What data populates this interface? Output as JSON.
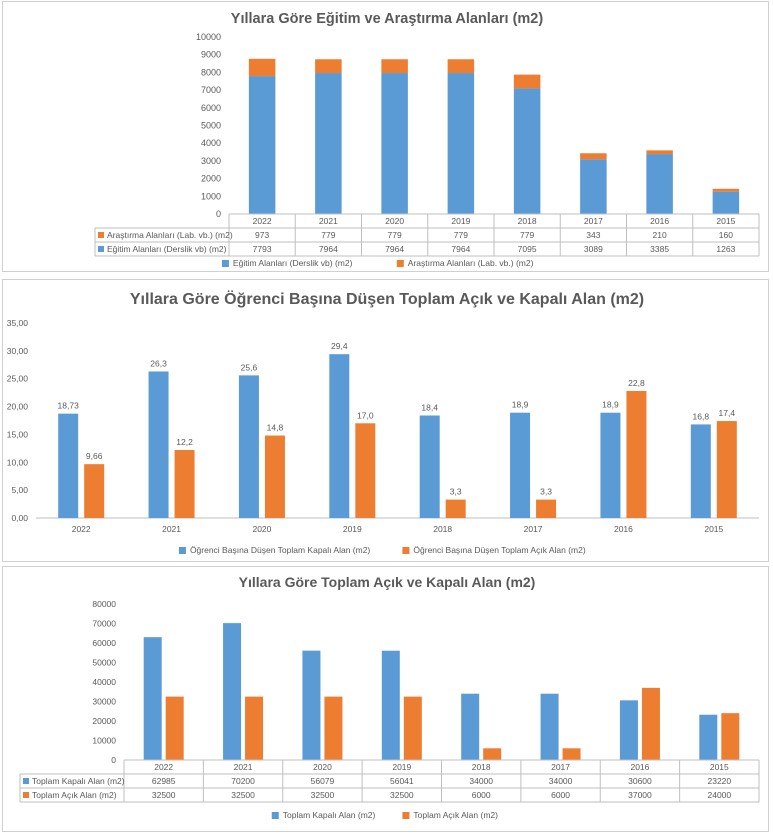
{
  "colors": {
    "blue": "#5b9bd5",
    "orange": "#ed7d31",
    "grid": "#d9d9d9",
    "axis": "#bfbfbf",
    "text": "#595959"
  },
  "chart_data": [
    {
      "type": "bar",
      "stacked": true,
      "title": "Yıllara Göre Eğitim ve Araştırma Alanları (m2)",
      "categories": [
        "2022",
        "2021",
        "2020",
        "2019",
        "2018",
        "2017",
        "2016",
        "2015"
      ],
      "ylim": [
        0,
        10000
      ],
      "yticks": [
        "0",
        "1000",
        "2000",
        "3000",
        "4000",
        "5000",
        "6000",
        "7000",
        "8000",
        "9000",
        "10000"
      ],
      "series": [
        {
          "name": "Eğitim Alanları (Derslik vb) (m2)",
          "color": "#5b9bd5",
          "values": [
            7793,
            7964,
            7964,
            7964,
            7095,
            3089,
            3385,
            1263
          ]
        },
        {
          "name": "Araştırma Alanları (Lab. vb.) (m2)",
          "color": "#ed7d31",
          "values": [
            973,
            779,
            779,
            779,
            779,
            343,
            210,
            160
          ]
        }
      ],
      "data_table": {
        "rows": [
          {
            "label": "Araştırma Alanları (Lab. vb.) (m2)",
            "color": "#ed7d31",
            "cells": [
              "973",
              "779",
              "779",
              "779",
              "779",
              "343",
              "210",
              "160"
            ]
          },
          {
            "label": "Eğitim Alanları (Derslik vb) (m2)",
            "color": "#5b9bd5",
            "cells": [
              "7793",
              "7964",
              "7964",
              "7964",
              "7095",
              "3089",
              "3385",
              "1263"
            ]
          }
        ]
      },
      "legend": [
        "Eğitim Alanları (Derslik vb) (m2)",
        "Araştırma Alanları (Lab. vb.) (m2)"
      ],
      "grid": false,
      "legend_position": "bottom"
    },
    {
      "type": "bar",
      "title": "Yıllara Göre Öğrenci Başına Düşen Toplam Açık ve Kapalı Alan (m2)",
      "categories": [
        "2022",
        "2021",
        "2020",
        "2019",
        "2018",
        "2017",
        "2016",
        "2015"
      ],
      "ylim": [
        0,
        35
      ],
      "yticks": [
        "0,00",
        "5,00",
        "10,00",
        "15,00",
        "20,00",
        "25,00",
        "30,00",
        "35,00"
      ],
      "series": [
        {
          "name": "Öğrenci Başına Düşen Toplam Kapalı Alan (m2)",
          "color": "#5b9bd5",
          "values": [
            18.73,
            26.3,
            25.6,
            29.4,
            18.4,
            18.9,
            18.9,
            16.8
          ],
          "labels": [
            "18,73",
            "26,3",
            "25,6",
            "29,4",
            "18,4",
            "18,9",
            "18,9",
            "16,8"
          ]
        },
        {
          "name": "Öğrenci Başına Düşen Toplam Açık Alan (m2)",
          "color": "#ed7d31",
          "values": [
            9.66,
            12.2,
            14.8,
            17.0,
            3.3,
            3.3,
            22.8,
            17.4
          ],
          "labels": [
            "9,66",
            "12,2",
            "14,8",
            "17,0",
            "3,3",
            "3,3",
            "22,8",
            "17,4"
          ]
        }
      ],
      "legend": [
        "Öğrenci Başına Düşen Toplam Kapalı Alan (m2)",
        "Öğrenci Başına Düşen Toplam Açık Alan (m2)"
      ],
      "grid": false,
      "legend_position": "bottom"
    },
    {
      "type": "bar",
      "title": "Yıllara Göre Toplam Açık ve Kapalı Alan (m2)",
      "categories": [
        "2022",
        "2021",
        "2020",
        "2019",
        "2018",
        "2017",
        "2016",
        "2015"
      ],
      "ylim": [
        0,
        80000
      ],
      "yticks": [
        "0",
        "10000",
        "20000",
        "30000",
        "40000",
        "50000",
        "60000",
        "70000",
        "80000"
      ],
      "series": [
        {
          "name": "Toplam Kapalı Alan (m2)",
          "color": "#5b9bd5",
          "values": [
            62985,
            70200,
            56079,
            56041,
            34000,
            34000,
            30600,
            23220
          ]
        },
        {
          "name": "Toplam Açık Alan (m2)",
          "color": "#ed7d31",
          "values": [
            32500,
            32500,
            32500,
            32500,
            6000,
            6000,
            37000,
            24000
          ]
        }
      ],
      "data_table": {
        "rows": [
          {
            "label": "Toplam Kapalı Alan (m2)",
            "color": "#5b9bd5",
            "cells": [
              "62985",
              "70200",
              "56079",
              "56041",
              "34000",
              "34000",
              "30600",
              "23220"
            ]
          },
          {
            "label": "Toplam Açık Alan (m2)",
            "color": "#ed7d31",
            "cells": [
              "32500",
              "32500",
              "32500",
              "32500",
              "6000",
              "6000",
              "37000",
              "24000"
            ]
          }
        ]
      },
      "legend": [
        "Toplam Kapalı Alan (m2)",
        "Toplam Açık Alan (m2)"
      ],
      "grid": false,
      "legend_position": "bottom"
    }
  ]
}
